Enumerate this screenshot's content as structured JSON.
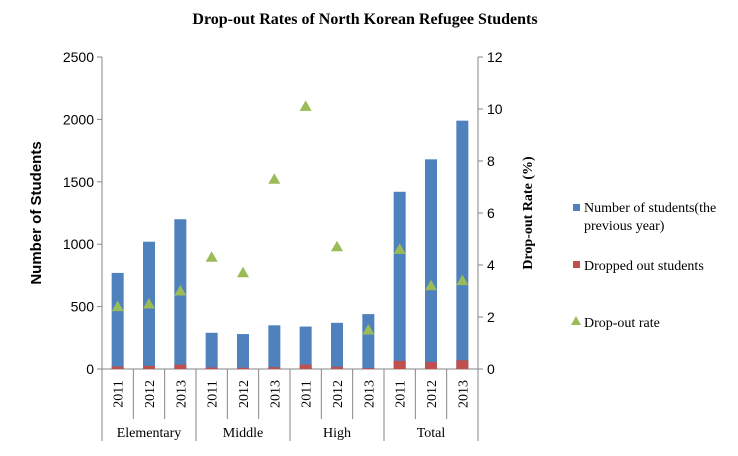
{
  "chart_data": {
    "type": "bar",
    "title": "Drop-out Rates of North Korean Refugee Students",
    "ylabel": "Number of Students",
    "y2label": "Drop-out Rate (%)",
    "ylim": [
      0,
      2500
    ],
    "yticks": [
      "0",
      "500",
      "1000",
      "1500",
      "2000",
      "2500"
    ],
    "y2lim": [
      0,
      12
    ],
    "y2ticks": [
      "0",
      "2",
      "4",
      "6",
      "8",
      "10",
      "12"
    ],
    "groups": [
      "Elementary",
      "Middle",
      "High",
      "Total"
    ],
    "categories": [
      "2011",
      "2012",
      "2013",
      "2011",
      "2012",
      "2013",
      "2011",
      "2012",
      "2013",
      "2011",
      "2012",
      "2013"
    ],
    "series": [
      {
        "name": "Number of students(the previous year)",
        "kind": "bar",
        "axis": "left",
        "color": "#4f81bd",
        "values": [
          770,
          1020,
          1200,
          290,
          280,
          350,
          340,
          370,
          440,
          1420,
          1680,
          1990
        ]
      },
      {
        "name": "Dropped out students",
        "kind": "bar",
        "axis": "left",
        "color": "#c0504d",
        "values": [
          20,
          25,
          35,
          12,
          10,
          15,
          35,
          18,
          7,
          65,
          55,
          70
        ]
      },
      {
        "name": "Drop-out rate",
        "kind": "scatter",
        "axis": "right",
        "color": "#9bbb59",
        "values": [
          2.4,
          2.5,
          3.0,
          4.3,
          3.7,
          7.3,
          10.1,
          4.7,
          1.5,
          4.6,
          3.2,
          3.4
        ]
      }
    ],
    "legend_position": "right",
    "grid": false
  }
}
